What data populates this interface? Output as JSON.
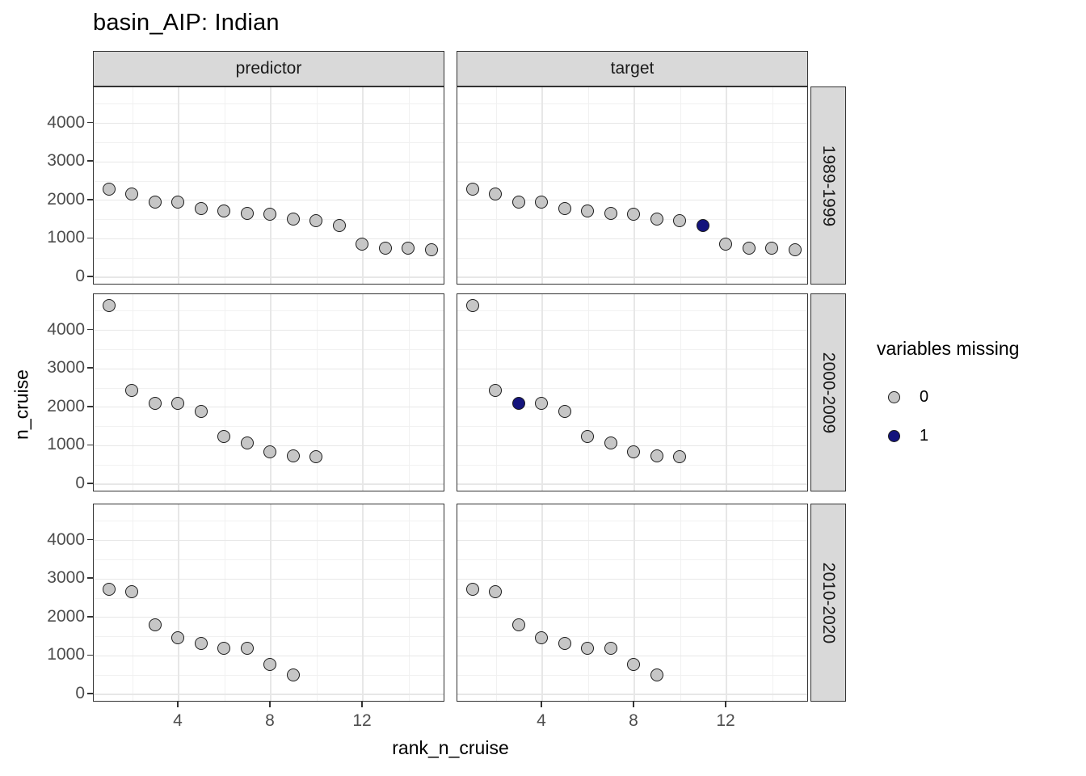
{
  "chart": {
    "title": "basin_AIP: Indian",
    "x_axis_label": "rank_n_cruise",
    "y_axis_label": "n_cruise"
  },
  "legend": {
    "title": "variables missing",
    "items": [
      {
        "label": "0",
        "color": "#c6c6c6"
      },
      {
        "label": "1",
        "color": "#14147c"
      }
    ]
  },
  "chart_data": {
    "type": "scatter",
    "title": "basin_AIP: Indian",
    "xlabel": "rank_n_cruise",
    "ylabel": "n_cruise",
    "legend_title": "variables missing",
    "legend_position": "right",
    "grid": true,
    "facet_columns": [
      "predictor",
      "target"
    ],
    "facet_rows": [
      "1989-1999",
      "2000-2009",
      "2010-2020"
    ],
    "x_ticks": [
      4,
      8,
      12
    ],
    "y_ticks": [
      0,
      1000,
      2000,
      3000,
      4000
    ],
    "x_minor_ticks": [
      2,
      6,
      10,
      14
    ],
    "y_minor_ticks": [
      500,
      1500,
      2500,
      3500,
      4500
    ],
    "xlim": [
      0.3,
      15.7
    ],
    "ylim": [
      -230,
      4900
    ],
    "point_colors": {
      "0": "#c6c6c6",
      "1": "#14147c"
    },
    "panels": [
      {
        "column": "predictor",
        "row": "1989-1999",
        "x": [
          1,
          2,
          3,
          4,
          5,
          6,
          7,
          8,
          9,
          10,
          11,
          12,
          13,
          14,
          15
        ],
        "y": [
          2270,
          2140,
          1930,
          1930,
          1760,
          1700,
          1650,
          1630,
          1490,
          1460,
          1320,
          850,
          740,
          730,
          690
        ],
        "missing": [
          0,
          0,
          0,
          0,
          0,
          0,
          0,
          0,
          0,
          0,
          0,
          0,
          0,
          0,
          0
        ]
      },
      {
        "column": "target",
        "row": "1989-1999",
        "x": [
          1,
          2,
          3,
          4,
          5,
          6,
          7,
          8,
          9,
          10,
          11,
          12,
          13,
          14,
          15
        ],
        "y": [
          2270,
          2140,
          1930,
          1930,
          1760,
          1700,
          1650,
          1630,
          1490,
          1460,
          1320,
          850,
          740,
          730,
          690
        ],
        "missing": [
          0,
          0,
          0,
          0,
          0,
          0,
          0,
          0,
          0,
          0,
          1,
          0,
          0,
          0,
          0
        ]
      },
      {
        "column": "predictor",
        "row": "2000-2009",
        "x": [
          1,
          2,
          3,
          4,
          5,
          6,
          7,
          8,
          9,
          10
        ],
        "y": [
          4620,
          2420,
          2090,
          2090,
          1880,
          1230,
          1050,
          830,
          710,
          690
        ],
        "missing": [
          0,
          0,
          0,
          0,
          0,
          0,
          0,
          0,
          0,
          0
        ]
      },
      {
        "column": "target",
        "row": "2000-2009",
        "x": [
          1,
          2,
          3,
          4,
          5,
          6,
          7,
          8,
          9,
          10
        ],
        "y": [
          4620,
          2420,
          2090,
          2090,
          1880,
          1230,
          1050,
          830,
          710,
          690
        ],
        "missing": [
          0,
          0,
          1,
          0,
          0,
          0,
          0,
          0,
          0,
          0
        ]
      },
      {
        "column": "predictor",
        "row": "2010-2020",
        "x": [
          1,
          2,
          3,
          4,
          5,
          6,
          7,
          8,
          9
        ],
        "y": [
          2710,
          2650,
          1790,
          1460,
          1310,
          1190,
          1170,
          750,
          490
        ],
        "missing": [
          0,
          0,
          0,
          0,
          0,
          0,
          0,
          0,
          0
        ]
      },
      {
        "column": "target",
        "row": "2010-2020",
        "x": [
          1,
          2,
          3,
          4,
          5,
          6,
          7,
          8,
          9
        ],
        "y": [
          2710,
          2650,
          1790,
          1460,
          1310,
          1190,
          1170,
          750,
          490
        ],
        "missing": [
          0,
          0,
          0,
          0,
          0,
          0,
          0,
          0,
          0
        ]
      }
    ]
  }
}
